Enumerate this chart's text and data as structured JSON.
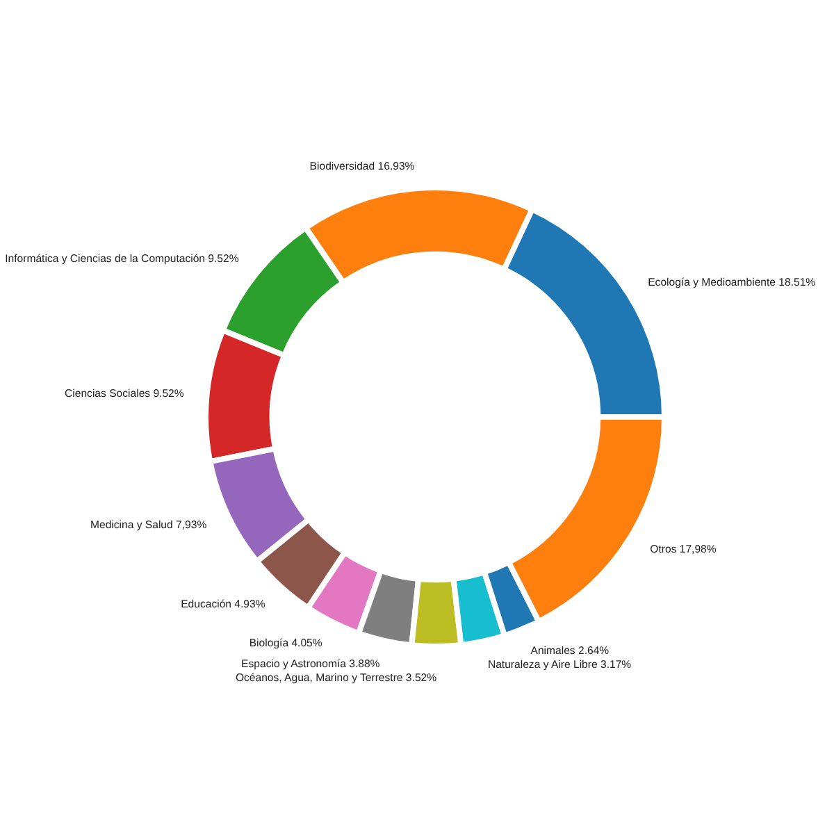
{
  "chart_data": {
    "type": "donut",
    "categories": [
      "Ecología y Medioambiente",
      "Biodiversidad",
      "Informática y Ciencias de la Computación",
      "Ciencias Sociales",
      "Medicina y Salud",
      "Educación",
      "Biología",
      "Espacio y Astronomía",
      "Océanos, Agua, Marino y Terrestre",
      "Naturaleza y Aire Libre",
      "Animales",
      "Otros"
    ],
    "values": [
      18.51,
      16.93,
      9.52,
      9.52,
      7.93,
      4.93,
      4.05,
      3.88,
      3.52,
      3.17,
      2.64,
      17.98
    ],
    "value_labels": [
      "18.51%",
      "16.93%",
      "9.52%",
      "9.52%",
      "7,93%",
      "4.93%",
      "4.05%",
      "3.88%",
      "3.52%",
      "3.17%",
      "2.64%",
      "17,98%"
    ],
    "colors": [
      "#1f77b4",
      "#ff7f0e",
      "#2ca02c",
      "#d62728",
      "#9467bd",
      "#8c564b",
      "#e377c2",
      "#7f7f7f",
      "#bcbd22",
      "#17becf",
      "#1f77b4",
      "#ff7f0e"
    ]
  }
}
